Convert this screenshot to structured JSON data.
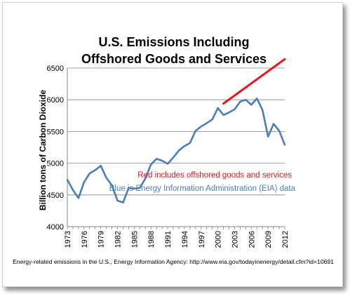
{
  "chart_data": {
    "type": "line",
    "title": [
      "U.S. Emissions Including",
      "Offshored Goods and Services"
    ],
    "ylabel": "Billion tons of Carbon Dioxide",
    "xlabel": "",
    "ylim": [
      4000,
      6500
    ],
    "yticks": [
      4000,
      4500,
      5000,
      5500,
      6000,
      6500
    ],
    "xlim": [
      1973,
      2012
    ],
    "xticks": [
      1973,
      1976,
      1979,
      1982,
      1985,
      1988,
      1991,
      1994,
      1997,
      2000,
      2003,
      2006,
      2009,
      2012
    ],
    "grid": "horizontal",
    "series": [
      {
        "name": "",
        "color": "#4a7ebb",
        "x": [
          1973,
          1974,
          1975,
          1976,
          1977,
          1978,
          1979,
          1980,
          1981,
          1982,
          1983,
          1984,
          1985,
          1986,
          1987,
          1988,
          1989,
          1990,
          1991,
          1992,
          1993,
          1994,
          1995,
          1996,
          1997,
          1998,
          1999,
          2000,
          2001,
          2002,
          2003,
          2004,
          2005,
          2006,
          2007,
          2008,
          2009,
          2010,
          2011,
          2012
        ],
        "values": [
          4740,
          4580,
          4450,
          4700,
          4840,
          4890,
          4960,
          4770,
          4650,
          4410,
          4380,
          4610,
          4600,
          4610,
          4760,
          4980,
          5070,
          5040,
          4990,
          5090,
          5200,
          5270,
          5320,
          5510,
          5580,
          5630,
          5690,
          5870,
          5760,
          5800,
          5850,
          5970,
          6000,
          5920,
          6020,
          5840,
          5420,
          5620,
          5510,
          5290
        ]
      },
      {
        "name": "",
        "color": "#e8141b",
        "x": [
          2001,
          2012
        ],
        "values": [
          5940,
          6640
        ]
      }
    ],
    "annotations": [
      {
        "text": "Red includes offshored goods and services",
        "color": "#e8141b"
      },
      {
        "text": "Blue is Energy Information Administration (EIA) data",
        "color": "#4a7ebb"
      }
    ]
  },
  "source_note": "Energy-related emissions in the U.S., Energy Information Agency: http://www.eia.gov/todayinenergy/detail.cfm?id=10691"
}
